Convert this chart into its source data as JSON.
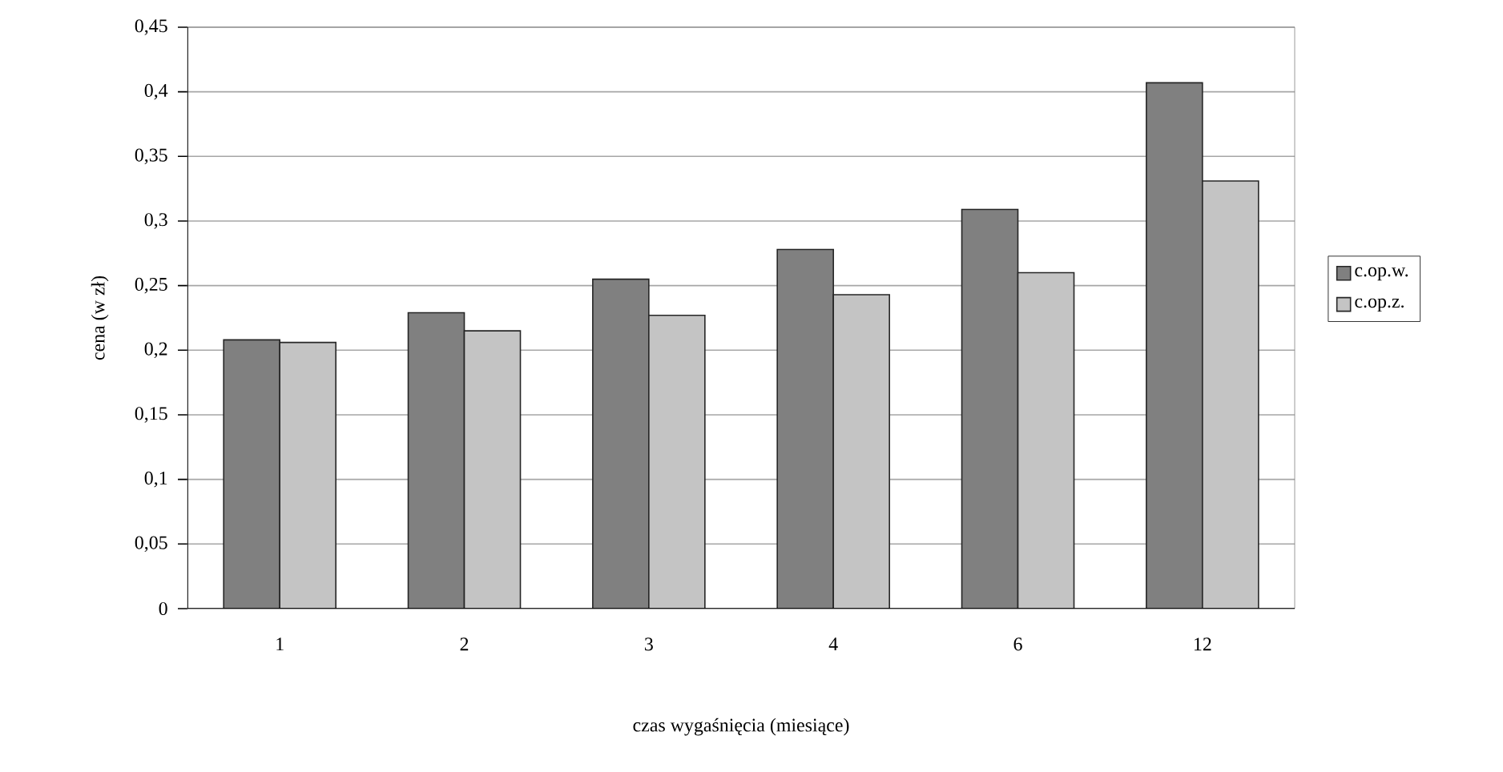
{
  "chart_data": {
    "type": "bar",
    "xlabel": "czas wygaśnięcia (miesiące)",
    "ylabel": "cena (w zł)",
    "categories": [
      "1",
      "2",
      "3",
      "4",
      "6",
      "12"
    ],
    "series": [
      {
        "name": "c.op.w.",
        "color": "#808080",
        "values": [
          0.208,
          0.229,
          0.255,
          0.278,
          0.309,
          0.407
        ]
      },
      {
        "name": "c.op.z.",
        "color": "#c4c4c4",
        "values": [
          0.206,
          0.215,
          0.227,
          0.243,
          0.26,
          0.331
        ]
      }
    ],
    "ylim": [
      0,
      0.45
    ],
    "yticks": [
      0,
      {
        "value": 0.05,
        "label": "0,05"
      },
      {
        "value": 0.1,
        "label": "0,1"
      },
      {
        "value": 0.15,
        "label": "0,15"
      },
      {
        "value": 0.2,
        "label": "0,2"
      },
      {
        "value": 0.25,
        "label": "0,25"
      },
      {
        "value": 0.3,
        "label": "0,3"
      },
      {
        "value": 0.35,
        "label": "0,35"
      },
      {
        "value": 0.4,
        "label": "0,4"
      },
      {
        "value": 0.45,
        "label": "0,45"
      }
    ],
    "grid": "y",
    "legend": "right"
  }
}
